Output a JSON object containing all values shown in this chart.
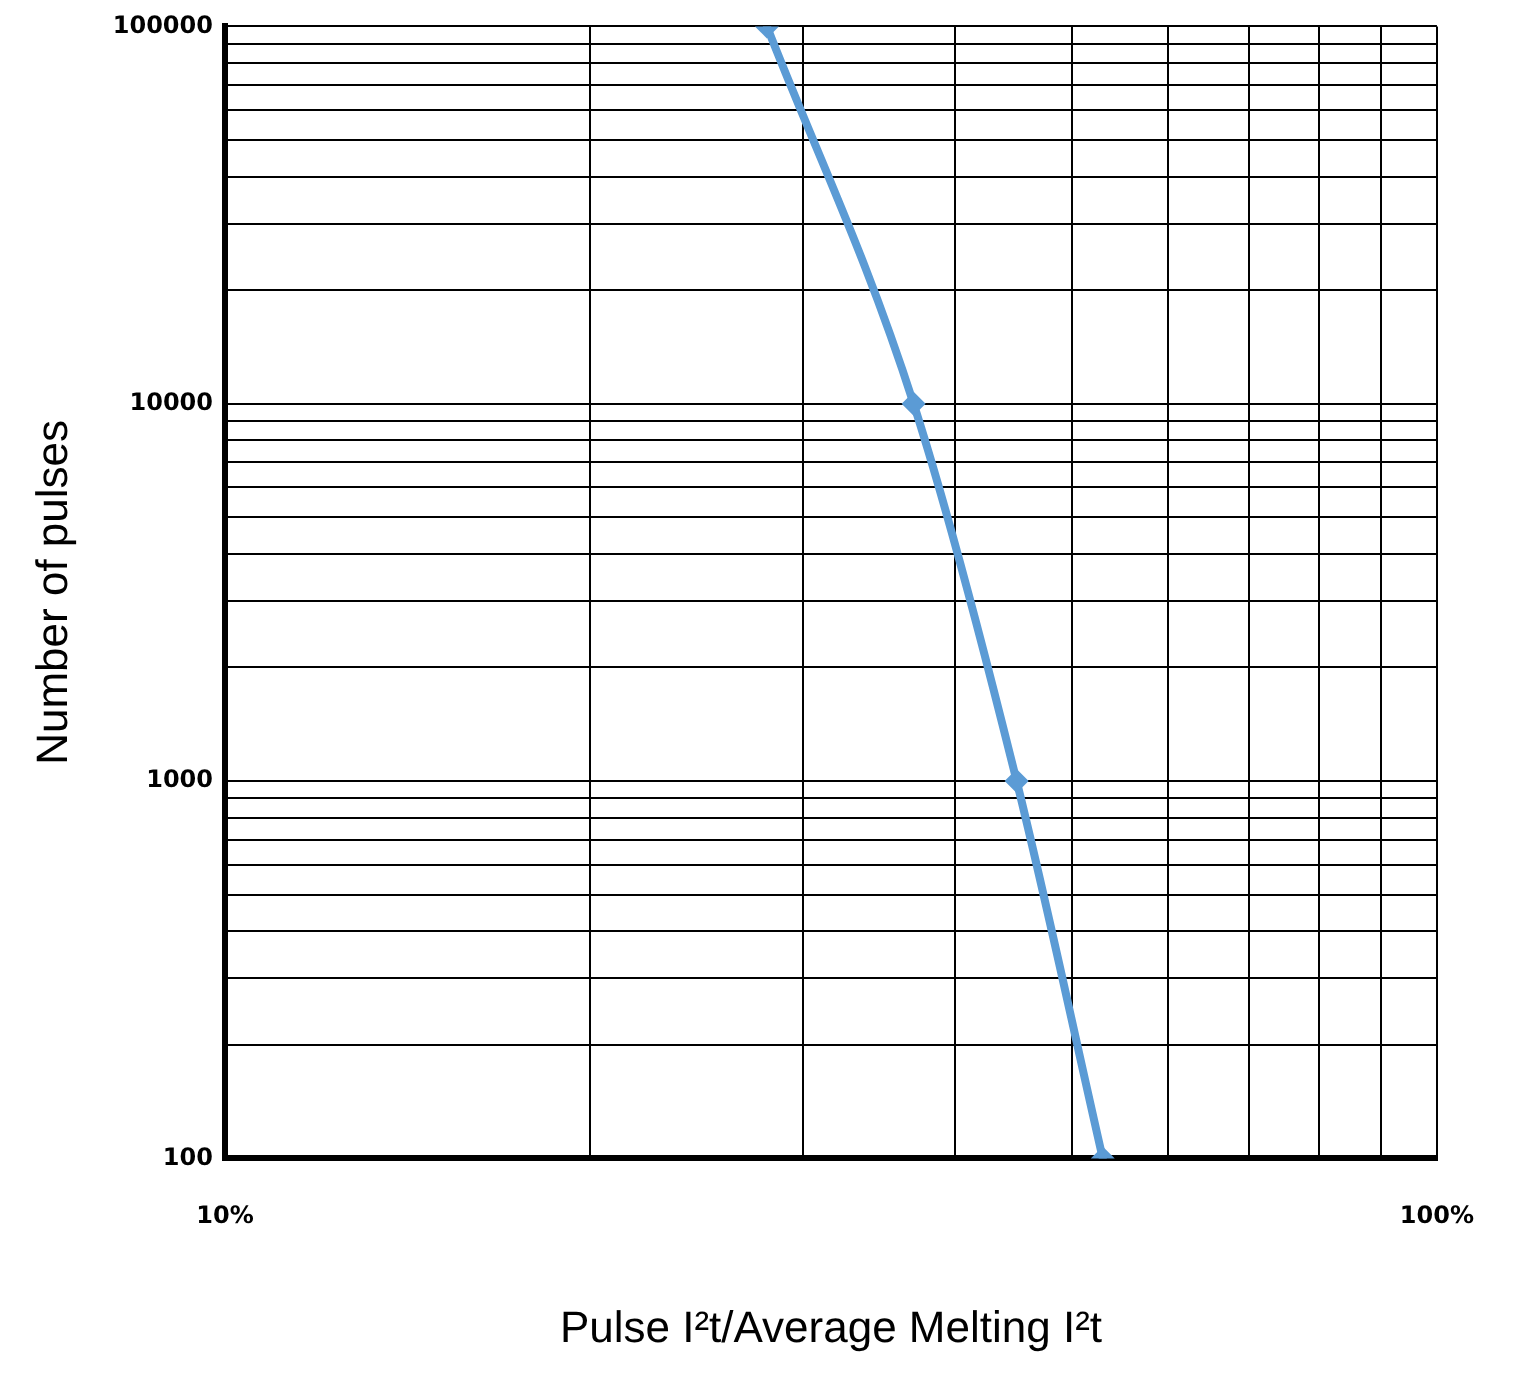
{
  "chart_data": {
    "type": "line",
    "xlabel": "Pulse I²t/Average Melting I²t",
    "ylabel": "Number of pulses",
    "x": [
      28,
      37,
      45,
      53
    ],
    "values": [
      100000,
      10000,
      1000,
      100
    ],
    "color": "#5b9bd5",
    "marker": "diamond",
    "log": "xy",
    "grid": true,
    "xlim": [
      10,
      100
    ],
    "ylim": [
      100,
      100000
    ],
    "xticks": [
      {
        "value": 10,
        "label": "10%"
      },
      {
        "value": 20,
        "label": null
      },
      {
        "value": 30,
        "label": null
      },
      {
        "value": 40,
        "label": null
      },
      {
        "value": 50,
        "label": null
      },
      {
        "value": 60,
        "label": null
      },
      {
        "value": 70,
        "label": null
      },
      {
        "value": 80,
        "label": null
      },
      {
        "value": 90,
        "label": null
      },
      {
        "value": 100,
        "label": "100%"
      }
    ],
    "yticks": [
      100,
      {
        "value": 200,
        "label": null
      },
      {
        "value": 300,
        "label": null
      },
      {
        "value": 400,
        "label": null
      },
      {
        "value": 500,
        "label": null
      },
      {
        "value": 600,
        "label": null
      },
      {
        "value": 700,
        "label": null
      },
      {
        "value": 800,
        "label": null
      },
      {
        "value": 900,
        "label": null
      },
      1000,
      {
        "value": 2000,
        "label": null
      },
      {
        "value": 3000,
        "label": null
      },
      {
        "value": 4000,
        "label": null
      },
      {
        "value": 5000,
        "label": null
      },
      {
        "value": 6000,
        "label": null
      },
      {
        "value": 7000,
        "label": null
      },
      {
        "value": 8000,
        "label": null
      },
      {
        "value": 9000,
        "label": null
      },
      10000,
      {
        "value": 20000,
        "label": null
      },
      {
        "value": 30000,
        "label": null
      },
      {
        "value": 40000,
        "label": null
      },
      {
        "value": 50000,
        "label": null
      },
      {
        "value": 60000,
        "label": null
      },
      {
        "value": 70000,
        "label": null
      },
      {
        "value": 80000,
        "label": null
      },
      {
        "value": 90000,
        "label": null
      },
      100000
    ]
  }
}
